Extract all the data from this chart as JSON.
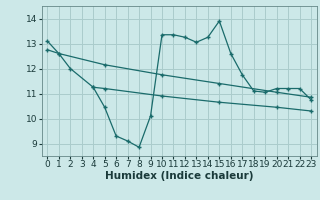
{
  "title": "",
  "xlabel": "Humidex (Indice chaleur)",
  "bg_color": "#cce8e8",
  "grid_color": "#aacccc",
  "line_color": "#1a6b6b",
  "xlim": [
    -0.5,
    23.5
  ],
  "ylim": [
    8.5,
    14.5
  ],
  "yticks": [
    9,
    10,
    11,
    12,
    13,
    14
  ],
  "xticks": [
    0,
    1,
    2,
    3,
    4,
    5,
    6,
    7,
    8,
    9,
    10,
    11,
    12,
    13,
    14,
    15,
    16,
    17,
    18,
    19,
    20,
    21,
    22,
    23
  ],
  "line1_x": [
    0,
    1,
    2,
    4,
    5,
    6,
    7,
    8,
    9,
    10,
    11,
    12,
    13,
    14,
    15,
    16,
    17,
    18,
    19,
    20,
    21,
    22,
    23
  ],
  "line1_y": [
    13.1,
    12.6,
    12.0,
    11.25,
    10.45,
    9.3,
    9.1,
    8.85,
    10.1,
    13.35,
    13.35,
    13.25,
    13.05,
    13.25,
    13.9,
    12.6,
    11.75,
    11.1,
    11.05,
    11.2,
    11.2,
    11.2,
    10.75
  ],
  "line2_x": [
    0,
    1,
    5,
    10,
    15,
    20,
    23
  ],
  "line2_y": [
    12.75,
    12.6,
    12.15,
    11.75,
    11.4,
    11.05,
    10.85
  ],
  "line3_x": [
    4,
    5,
    10,
    15,
    20,
    23
  ],
  "line3_y": [
    11.25,
    11.2,
    10.9,
    10.65,
    10.45,
    10.3
  ],
  "tick_fontsize": 6.5,
  "xlabel_fontsize": 7.5
}
